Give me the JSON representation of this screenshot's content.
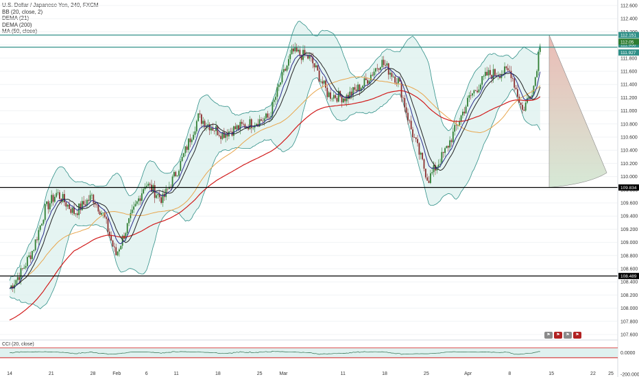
{
  "legend": {
    "title": "U.S. Dollar / Japanese Yen, 240, FXCM",
    "indicators": [
      "BB (20, close, 2)",
      "DEMA (21)",
      "DEMA (200)",
      "MA (50, close)"
    ]
  },
  "colors": {
    "bb": "#2f8f87",
    "bb_fill": "#dff1ef",
    "dema21": "#2a2a8c",
    "dema200": "#d11a1a",
    "ma50": "#e8a54b",
    "ma_short": "#222222",
    "up": "#2e7d32",
    "down": "#8b2d2d",
    "hline_black": "#000000",
    "hline_teal": "#2f8f87",
    "cci": "#2e6e4e",
    "cci_fill": "#dff1ef",
    "cci_band": "#d11a1a",
    "fan_top": "#e7b0a9",
    "fan_bottom": "#cfe5cf"
  },
  "price_axis": {
    "labels": [
      "112.600",
      "112.400",
      "112.200",
      "112.000",
      "111.800",
      "111.600",
      "111.400",
      "111.200",
      "111.000",
      "110.800",
      "110.600",
      "110.400",
      "110.200",
      "110.000",
      "109.800",
      "109.600",
      "109.400",
      "109.200",
      "109.000",
      "108.800",
      "108.600",
      "108.400",
      "108.200",
      "108.000",
      "107.800",
      "107.600"
    ],
    "tags": [
      {
        "value": "112.151",
        "bg": "#2f8f87"
      },
      {
        "value": "111.966",
        "bg": "#2f8f87"
      },
      {
        "value": "111.927",
        "bg": "#2f8f87"
      },
      {
        "value": "112.05",
        "bg": "#2e7d32"
      },
      {
        "value": "109.834",
        "bg": "#000000"
      },
      {
        "value": "108.489",
        "bg": "#000000"
      }
    ]
  },
  "cci_axis": {
    "labels": [
      "0.0000",
      "-200.0000"
    ]
  },
  "time_axis": {
    "labels": [
      "14",
      "21",
      "28",
      "Feb",
      "6",
      "11",
      "18",
      "25",
      "Mar",
      "11",
      "18",
      "25",
      "Apr",
      "8",
      "15",
      "22",
      "25"
    ]
  },
  "chart_data": {
    "type": "candlestick",
    "title": "U.S. Dollar / Japanese Yen, 240, FXCM",
    "series_names": [
      "BB (20, close, 2)",
      "DEMA (21)",
      "DEMA (200)",
      "MA (50, close)",
      "CCI (20, close)"
    ],
    "y_range": [
      107.5,
      112.62
    ],
    "x_range": [
      "Jan 13",
      "Apr 25"
    ],
    "horizontal_levels": [
      112.151,
      111.966,
      109.834,
      108.489
    ],
    "last_price": 112.05,
    "close_path": [
      {
        "x": "Jan 13",
        "y": 108.3
      },
      {
        "x": "Jan 15",
        "y": 108.55
      },
      {
        "x": "Jan 17",
        "y": 108.9
      },
      {
        "x": "Jan 19",
        "y": 109.5
      },
      {
        "x": "Jan 21",
        "y": 109.75
      },
      {
        "x": "Jan 24",
        "y": 109.45
      },
      {
        "x": "Jan 27",
        "y": 109.7
      },
      {
        "x": "Jan 29",
        "y": 109.4
      },
      {
        "x": "Jan 31",
        "y": 108.8
      },
      {
        "x": "Feb 2",
        "y": 109.25
      },
      {
        "x": "Feb 5",
        "y": 109.9
      },
      {
        "x": "Feb 8",
        "y": 109.65
      },
      {
        "x": "Feb 11",
        "y": 110.2
      },
      {
        "x": "Feb 14",
        "y": 110.9
      },
      {
        "x": "Feb 18",
        "y": 110.65
      },
      {
        "x": "Feb 21",
        "y": 110.75
      },
      {
        "x": "Feb 26",
        "y": 110.9
      },
      {
        "x": "Feb 28",
        "y": 111.45
      },
      {
        "x": "Mar 2",
        "y": 111.9
      },
      {
        "x": "Mar 5",
        "y": 111.8
      },
      {
        "x": "Mar 8",
        "y": 111.25
      },
      {
        "x": "Mar 11",
        "y": 111.2
      },
      {
        "x": "Mar 14",
        "y": 111.4
      },
      {
        "x": "Mar 17",
        "y": 111.75
      },
      {
        "x": "Mar 20",
        "y": 111.45
      },
      {
        "x": "Mar 22",
        "y": 110.75
      },
      {
        "x": "Mar 25",
        "y": 109.95
      },
      {
        "x": "Mar 28",
        "y": 110.4
      },
      {
        "x": "Apr 1",
        "y": 111.2
      },
      {
        "x": "Apr 4",
        "y": 111.55
      },
      {
        "x": "Apr 8",
        "y": 111.6
      },
      {
        "x": "Apr 10",
        "y": 111.0
      },
      {
        "x": "Apr 12",
        "y": 111.4
      },
      {
        "x": "Apr 13",
        "y": 112.05
      }
    ],
    "cci_range": [
      -300,
      250
    ]
  }
}
